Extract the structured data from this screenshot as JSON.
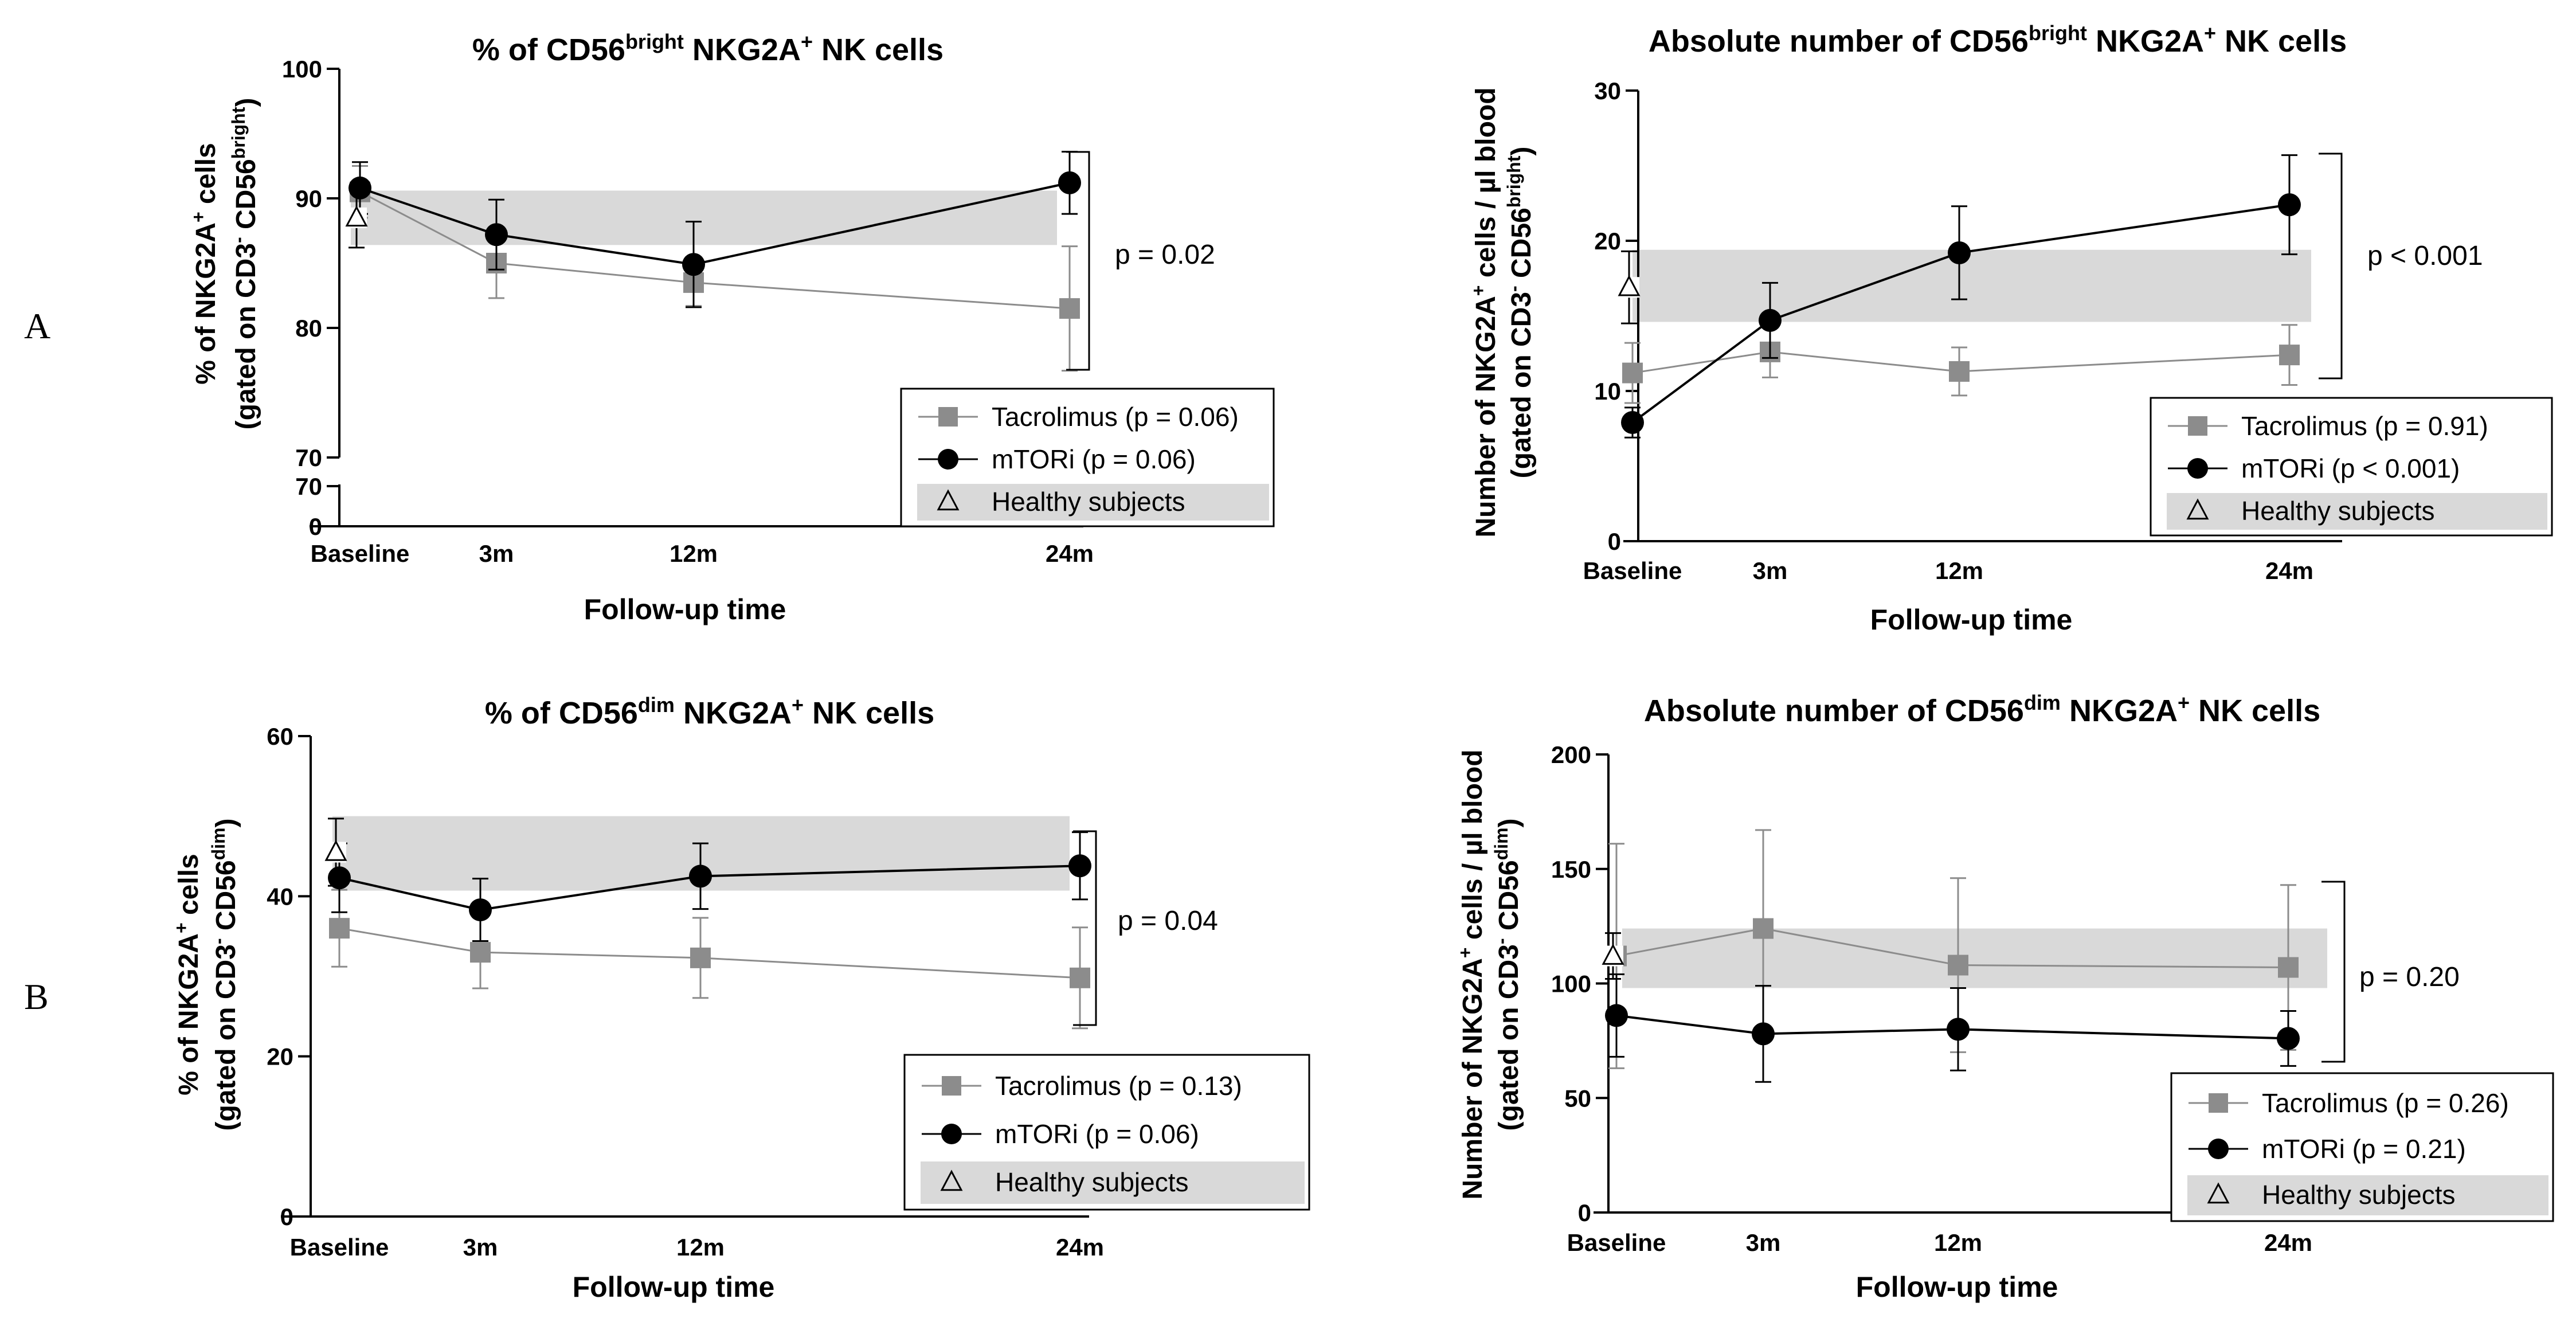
{
  "panel_labels": [
    "A",
    "B"
  ],
  "colors": {
    "tacrolimus": "#8c8c8c",
    "mtori": "#000000",
    "healthy_band": "#d9d9d9",
    "axis": "#000000"
  },
  "chart_data": [
    {
      "id": "p1",
      "type": "line",
      "title": {
        "pre": "% of CD56",
        "sup1": "bright",
        "mid": " NKG2A",
        "sup2": "+",
        "post": " NK cells"
      },
      "xlabel": "Follow-up time",
      "ylabel": {
        "l1": {
          "a": "% of NKG2A",
          "sup1": "+",
          "b": " cells"
        },
        "l2": {
          "a": "(gated on CD3",
          "sup1": "-",
          "b": " CD56",
          "sup2": "bright",
          "c": ")"
        }
      },
      "categories": [
        "Baseline",
        "3m",
        "12m",
        "24m"
      ],
      "ylim": [
        70,
        100
      ],
      "yticks": [
        70,
        80,
        90,
        100
      ],
      "broken_axis": {
        "lower_ticks": [
          0,
          70
        ]
      },
      "series": [
        {
          "name": "Tacrolimus (p = 0.06)",
          "key": "tac",
          "values": [
            90.5,
            85.0,
            83.5,
            81.5
          ],
          "err": [
            2.0,
            2.7,
            1.8,
            4.8
          ]
        },
        {
          "name": "mTORi (p = 0.06)",
          "key": "mtor",
          "values": [
            90.8,
            87.2,
            84.9,
            91.2
          ],
          "err": [
            2.0,
            2.7,
            3.3,
            2.4
          ]
        }
      ],
      "healthy": {
        "name": "Healthy subjects",
        "value": 88.5,
        "err": 2.3,
        "band": [
          86.4,
          90.6
        ]
      },
      "bracket_label": "p = 0.02",
      "legend_position": "bottom-right"
    },
    {
      "id": "p2",
      "type": "line",
      "title": {
        "pre": "Absolute number of CD56",
        "sup1": "bright",
        "mid": " NKG2A",
        "sup2": "+",
        "post": " NK cells"
      },
      "xlabel": "Follow-up time",
      "ylabel": {
        "l1": {
          "a": "Number of NKG2A",
          "sup1": "+",
          "b": " cells / µl blood"
        },
        "l2": {
          "a": "(gated on CD3",
          "sup1": "-",
          "b": " CD56",
          "sup2": "bright",
          "c": ")"
        }
      },
      "categories": [
        "Baseline",
        "3m",
        "12m",
        "24m"
      ],
      "ylim": [
        0,
        30
      ],
      "yticks": [
        0,
        10,
        20,
        30
      ],
      "series": [
        {
          "name": "Tacrolimus (p = 0.91)",
          "key": "tac",
          "values": [
            11.2,
            12.6,
            11.3,
            12.4
          ],
          "err": [
            2.0,
            1.7,
            1.6,
            2.0
          ]
        },
        {
          "name": "mTORi (p < 0.001)",
          "key": "mtor",
          "values": [
            7.9,
            14.7,
            19.2,
            22.4
          ],
          "err": [
            1.0,
            2.5,
            3.1,
            3.3
          ]
        }
      ],
      "healthy": {
        "name": "Healthy subjects",
        "value": 16.9,
        "err": 2.4,
        "band": [
          14.6,
          19.4
        ]
      },
      "bracket_label": "p < 0.001",
      "legend_position": "bottom-right"
    },
    {
      "id": "p3",
      "type": "line",
      "title": {
        "pre": "% of CD56",
        "sup1": "dim",
        "mid": " NKG2A",
        "sup2": "+",
        "post": " NK cells"
      },
      "xlabel": "Follow-up time",
      "ylabel": {
        "l1": {
          "a": "% of NKG2A",
          "sup1": "+",
          "b": " cells"
        },
        "l2": {
          "a": "(gated on CD3",
          "sup1": "-",
          "b": " CD56",
          "sup2": "dim",
          "c": ")"
        }
      },
      "categories": [
        "Baseline",
        "3m",
        "12m",
        "24m"
      ],
      "ylim": [
        0,
        60
      ],
      "yticks": [
        0,
        20,
        40,
        60
      ],
      "series": [
        {
          "name": "Tacrolimus (p = 0.13)",
          "key": "tac",
          "values": [
            36.0,
            33.0,
            32.3,
            29.8
          ],
          "err": [
            4.8,
            4.5,
            5.0,
            6.3
          ]
        },
        {
          "name": "mTORi (p = 0.06)",
          "key": "mtor",
          "values": [
            42.3,
            38.3,
            42.5,
            43.8
          ],
          "err": [
            4.3,
            3.9,
            4.1,
            4.2
          ]
        }
      ],
      "healthy": {
        "name": "Healthy subjects",
        "value": 45.5,
        "err": 4.2,
        "band": [
          40.7,
          50.0
        ]
      },
      "bracket_label": "p = 0.04",
      "legend_position": "bottom-right"
    },
    {
      "id": "p4",
      "type": "line",
      "title": {
        "pre": "Absolute number of CD56",
        "sup1": "dim",
        "mid": " NKG2A",
        "sup2": "+",
        "post": " NK cells"
      },
      "xlabel": "Follow-up time",
      "ylabel": {
        "l1": {
          "a": "Number of NKG2A",
          "sup1": "+",
          "b": " cells / µl blood"
        },
        "l2": {
          "a": "(gated on CD3",
          "sup1": "-",
          "b": " CD56",
          "sup2": "dim",
          "c": ")"
        }
      },
      "categories": [
        "Baseline",
        "3m",
        "12m",
        "24m"
      ],
      "ylim": [
        0,
        200
      ],
      "yticks": [
        0,
        50,
        100,
        150,
        200
      ],
      "series": [
        {
          "name": "Tacrolimus (p = 0.26)",
          "key": "tac",
          "values": [
            112,
            124,
            108,
            107
          ],
          "err": [
            49,
            43,
            38,
            36
          ]
        },
        {
          "name": "mTORi (p = 0.21)",
          "key": "mtor",
          "values": [
            86,
            78,
            80,
            76
          ],
          "err": [
            18,
            21,
            18,
            12
          ]
        }
      ],
      "healthy": {
        "name": "Healthy subjects",
        "value": 112,
        "err": 10,
        "band": [
          98,
          124
        ]
      },
      "bracket_label": "p = 0.20",
      "legend_position": "bottom-right"
    }
  ]
}
